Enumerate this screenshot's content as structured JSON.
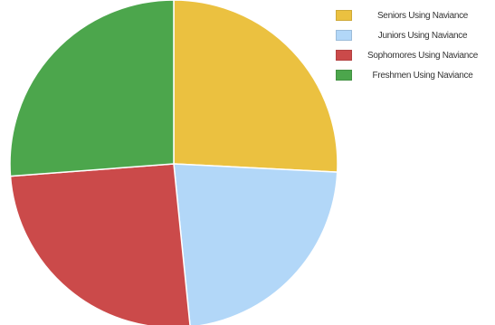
{
  "chart_data": {
    "type": "pie",
    "title": "",
    "legend_position": "top-right",
    "series": [
      {
        "name": "Seniors Using Naviance",
        "value": 25.8,
        "color": "#ebc140"
      },
      {
        "name": "Juniors Using Naviance",
        "value": 22.6,
        "color": "#b2d7f8"
      },
      {
        "name": "Sophomores Using Naviance",
        "value": 25.4,
        "color": "#cb4a4a"
      },
      {
        "name": "Freshmen Using Naviance",
        "value": 26.2,
        "color": "#4ca64c"
      }
    ]
  }
}
